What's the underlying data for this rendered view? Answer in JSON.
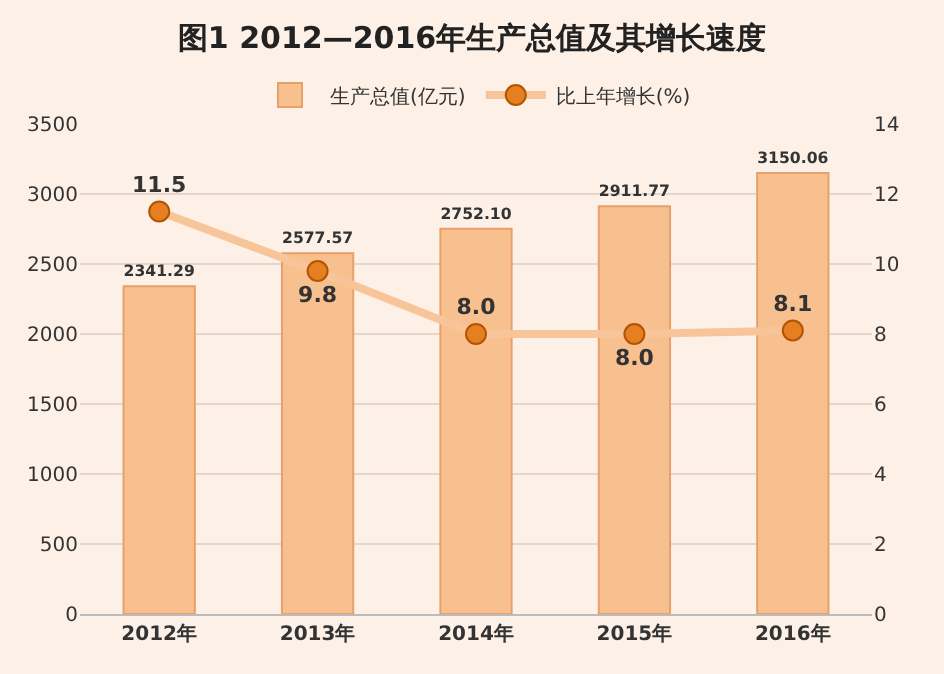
{
  "chart_data": {
    "type": "bar",
    "title": "图1 2012—2016年生产总值及其增长速度",
    "categories": [
      "2012年",
      "2013年",
      "2014年",
      "2015年",
      "2016年"
    ],
    "series": [
      {
        "name": "生产总值(亿元)",
        "color": "#f9c08f",
        "values": [
          2341.29,
          2577.57,
          2752.1,
          2911.77,
          3150.06
        ],
        "value_labels": [
          "2341.29",
          "2577.57",
          "2752.10",
          "2911.77",
          "3150.06"
        ]
      },
      {
        "name": "比上年增长(%)",
        "type": "line",
        "axis": "y2",
        "color": "#f8c49a",
        "marker": "circle",
        "values": [
          11.5,
          9.8,
          8.0,
          8.0,
          8.1
        ],
        "value_labels": [
          "11.5",
          "9.8",
          "8.0",
          "8.0",
          "8.1"
        ]
      }
    ],
    "ylim": [
      0,
      3500
    ],
    "yticks": [
      0,
      500,
      1000,
      1500,
      2000,
      2500,
      3000,
      3500
    ],
    "y2lim": [
      0,
      14
    ],
    "y2ticks": [
      0,
      2,
      4,
      6,
      8,
      10,
      12,
      14
    ],
    "grid": "y",
    "legend": "top"
  }
}
